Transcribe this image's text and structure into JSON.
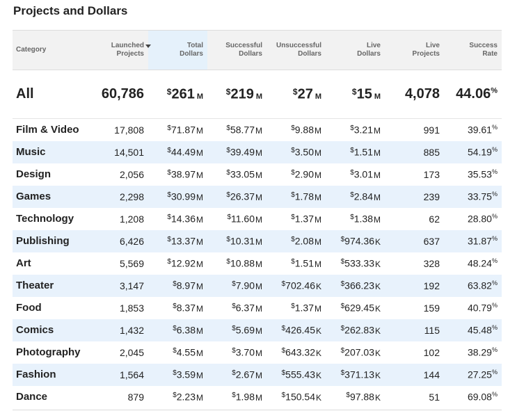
{
  "page": {
    "title": "Projects and Dollars",
    "sort_column": "total_dollars"
  },
  "headers": [
    {
      "key": "category",
      "label": "Category"
    },
    {
      "key": "launched",
      "label": "Launched\nProjects"
    },
    {
      "key": "total",
      "label": "Total\nDollars"
    },
    {
      "key": "successful",
      "label": "Successful\nDollars"
    },
    {
      "key": "unsuccessful",
      "label": "Unsuccessful\nDollars"
    },
    {
      "key": "live_dollars",
      "label": "Live\nDollars"
    },
    {
      "key": "live_projects",
      "label": "Live\nProjects"
    },
    {
      "key": "success_rate",
      "label": "Success\nRate"
    }
  ],
  "currency_symbol": "$",
  "percent_symbol": "%",
  "total": {
    "category": "All",
    "launched": "60,786",
    "total": {
      "v": "261",
      "u": "M"
    },
    "successful": {
      "v": "219",
      "u": "M"
    },
    "unsuccessful": {
      "v": "27",
      "u": "M"
    },
    "live_dollars": {
      "v": "15",
      "u": "M"
    },
    "live_projects": "4,078",
    "success_rate": "44.06"
  },
  "rows": [
    {
      "category": "Film & Video",
      "launched": "17,808",
      "total": {
        "v": "71.87",
        "u": "M"
      },
      "successful": {
        "v": "58.77",
        "u": "M"
      },
      "unsuccessful": {
        "v": "9.88",
        "u": "M"
      },
      "live_dollars": {
        "v": "3.21",
        "u": "M"
      },
      "live_projects": "991",
      "success_rate": "39.61"
    },
    {
      "category": "Music",
      "launched": "14,501",
      "total": {
        "v": "44.49",
        "u": "M"
      },
      "successful": {
        "v": "39.49",
        "u": "M"
      },
      "unsuccessful": {
        "v": "3.50",
        "u": "M"
      },
      "live_dollars": {
        "v": "1.51",
        "u": "M"
      },
      "live_projects": "885",
      "success_rate": "54.19"
    },
    {
      "category": "Design",
      "launched": "2,056",
      "total": {
        "v": "38.97",
        "u": "M"
      },
      "successful": {
        "v": "33.05",
        "u": "M"
      },
      "unsuccessful": {
        "v": "2.90",
        "u": "M"
      },
      "live_dollars": {
        "v": "3.01",
        "u": "M"
      },
      "live_projects": "173",
      "success_rate": "35.53"
    },
    {
      "category": "Games",
      "launched": "2,298",
      "total": {
        "v": "30.99",
        "u": "M"
      },
      "successful": {
        "v": "26.37",
        "u": "M"
      },
      "unsuccessful": {
        "v": "1.78",
        "u": "M"
      },
      "live_dollars": {
        "v": "2.84",
        "u": "M"
      },
      "live_projects": "239",
      "success_rate": "33.75"
    },
    {
      "category": "Technology",
      "launched": "1,208",
      "total": {
        "v": "14.36",
        "u": "M"
      },
      "successful": {
        "v": "11.60",
        "u": "M"
      },
      "unsuccessful": {
        "v": "1.37",
        "u": "M"
      },
      "live_dollars": {
        "v": "1.38",
        "u": "M"
      },
      "live_projects": "62",
      "success_rate": "28.80"
    },
    {
      "category": "Publishing",
      "launched": "6,426",
      "total": {
        "v": "13.37",
        "u": "M"
      },
      "successful": {
        "v": "10.31",
        "u": "M"
      },
      "unsuccessful": {
        "v": "2.08",
        "u": "M"
      },
      "live_dollars": {
        "v": "974.36",
        "u": "K"
      },
      "live_projects": "637",
      "success_rate": "31.87"
    },
    {
      "category": "Art",
      "launched": "5,569",
      "total": {
        "v": "12.92",
        "u": "M"
      },
      "successful": {
        "v": "10.88",
        "u": "M"
      },
      "unsuccessful": {
        "v": "1.51",
        "u": "M"
      },
      "live_dollars": {
        "v": "533.33",
        "u": "K"
      },
      "live_projects": "328",
      "success_rate": "48.24"
    },
    {
      "category": "Theater",
      "launched": "3,147",
      "total": {
        "v": "8.97",
        "u": "M"
      },
      "successful": {
        "v": "7.90",
        "u": "M"
      },
      "unsuccessful": {
        "v": "702.46",
        "u": "K"
      },
      "live_dollars": {
        "v": "366.23",
        "u": "K"
      },
      "live_projects": "192",
      "success_rate": "63.82"
    },
    {
      "category": "Food",
      "launched": "1,853",
      "total": {
        "v": "8.37",
        "u": "M"
      },
      "successful": {
        "v": "6.37",
        "u": "M"
      },
      "unsuccessful": {
        "v": "1.37",
        "u": "M"
      },
      "live_dollars": {
        "v": "629.45",
        "u": "K"
      },
      "live_projects": "159",
      "success_rate": "40.79"
    },
    {
      "category": "Comics",
      "launched": "1,432",
      "total": {
        "v": "6.38",
        "u": "M"
      },
      "successful": {
        "v": "5.69",
        "u": "M"
      },
      "unsuccessful": {
        "v": "426.45",
        "u": "K"
      },
      "live_dollars": {
        "v": "262.83",
        "u": "K"
      },
      "live_projects": "115",
      "success_rate": "45.48"
    },
    {
      "category": "Photography",
      "launched": "2,045",
      "total": {
        "v": "4.55",
        "u": "M"
      },
      "successful": {
        "v": "3.70",
        "u": "M"
      },
      "unsuccessful": {
        "v": "643.32",
        "u": "K"
      },
      "live_dollars": {
        "v": "207.03",
        "u": "K"
      },
      "live_projects": "102",
      "success_rate": "38.29"
    },
    {
      "category": "Fashion",
      "launched": "1,564",
      "total": {
        "v": "3.59",
        "u": "M"
      },
      "successful": {
        "v": "2.67",
        "u": "M"
      },
      "unsuccessful": {
        "v": "555.43",
        "u": "K"
      },
      "live_dollars": {
        "v": "371.13",
        "u": "K"
      },
      "live_projects": "144",
      "success_rate": "27.25"
    },
    {
      "category": "Dance",
      "launched": "879",
      "total": {
        "v": "2.23",
        "u": "M"
      },
      "successful": {
        "v": "1.98",
        "u": "M"
      },
      "unsuccessful": {
        "v": "150.54",
        "u": "K"
      },
      "live_dollars": {
        "v": "97.88",
        "u": "K"
      },
      "live_projects": "51",
      "success_rate": "69.08"
    }
  ]
}
